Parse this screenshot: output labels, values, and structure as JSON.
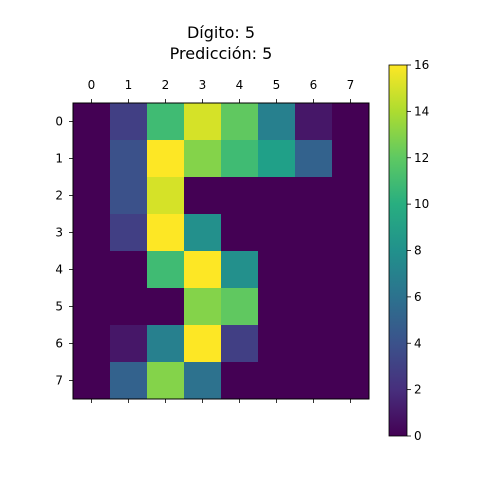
{
  "chart_data": {
    "type": "heatmap",
    "title_line1": "Dígito: 5",
    "title_line2": "Predicción: 5",
    "x_ticks": [
      "0",
      "1",
      "2",
      "3",
      "4",
      "5",
      "6",
      "7"
    ],
    "y_ticks": [
      "0",
      "1",
      "2",
      "3",
      "4",
      "5",
      "6",
      "7"
    ],
    "x_tick_position": "top",
    "matrix": [
      [
        0,
        3,
        11,
        15,
        12,
        7,
        1,
        0
      ],
      [
        0,
        4,
        16,
        13,
        11,
        9,
        5,
        0
      ],
      [
        0,
        4,
        15,
        0,
        0,
        0,
        0,
        0
      ],
      [
        0,
        3,
        16,
        8,
        0,
        0,
        0,
        0
      ],
      [
        0,
        0,
        11,
        16,
        8,
        0,
        0,
        0
      ],
      [
        0,
        0,
        0,
        13,
        12,
        0,
        0,
        0
      ],
      [
        0,
        1,
        7,
        16,
        3,
        0,
        0,
        0
      ],
      [
        0,
        5,
        13,
        6,
        0,
        0,
        0,
        0
      ]
    ],
    "colormap": "viridis",
    "vmin": 0,
    "vmax": 16,
    "colorbar_ticks": [
      "0",
      "2",
      "4",
      "6",
      "8",
      "10",
      "12",
      "14",
      "16"
    ],
    "grid": false
  }
}
